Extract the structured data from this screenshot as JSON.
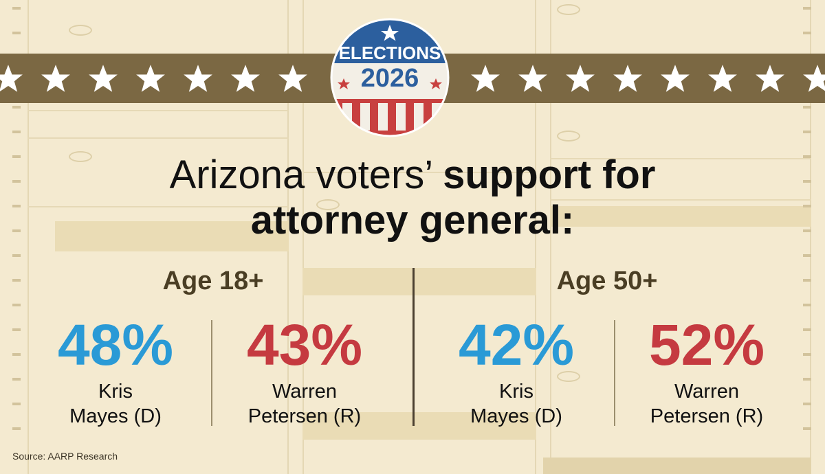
{
  "badge": {
    "top_text": "ELECTIONS",
    "year": "2026"
  },
  "headline": {
    "part1": "Arizona voters’ ",
    "part2": "support for attorney general:"
  },
  "colors": {
    "democrat": "#2a9ad6",
    "republican": "#c53a40",
    "band": "#7b6843"
  },
  "chart_data": {
    "type": "table",
    "title": "Arizona voters’ support for attorney general:",
    "groups": [
      {
        "label": "Age 18+",
        "candidates": [
          {
            "name": "Kris Mayes (D)",
            "party": "D",
            "value": 48,
            "display": "48%"
          },
          {
            "name": "Warren Petersen (R)",
            "party": "R",
            "value": 43,
            "display": "43%"
          }
        ]
      },
      {
        "label": "Age 50+",
        "candidates": [
          {
            "name": "Kris Mayes (D)",
            "party": "D",
            "value": 42,
            "display": "42%"
          },
          {
            "name": "Warren Petersen (R)",
            "party": "R",
            "value": 52,
            "display": "52%"
          }
        ]
      }
    ]
  },
  "names": {
    "d_line1": "Kris",
    "d_line2": "Mayes (D)",
    "r_line1": "Warren",
    "r_line2": "Petersen (R)"
  },
  "source": "Source: AARP Research"
}
